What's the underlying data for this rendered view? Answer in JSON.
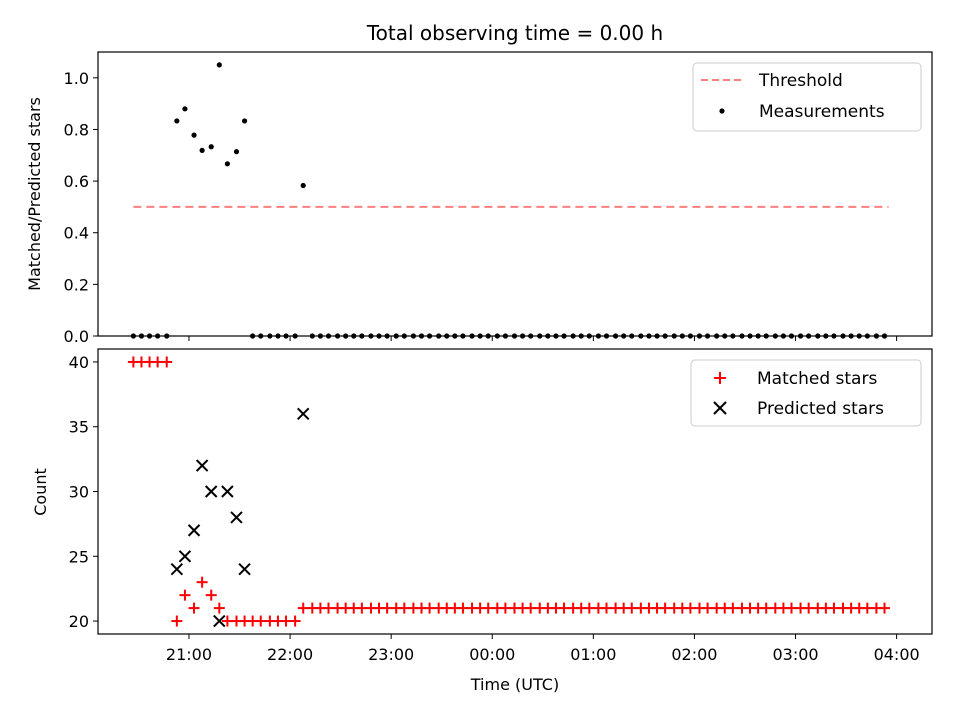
{
  "chart_data": [
    {
      "type": "scatter",
      "title": "Total observing time = 0.00 h",
      "xlabel": "",
      "ylabel": "Matched/Predicted stars",
      "xlim": [
        20.1,
        28.35
      ],
      "ylim": [
        0,
        1.1
      ],
      "yticks": [
        0.0,
        0.2,
        0.4,
        0.6,
        0.8,
        1.0
      ],
      "ytick_labels": [
        "0.0",
        "0.2",
        "0.4",
        "0.6",
        "0.8",
        "1.0"
      ],
      "xticks": [
        21,
        22,
        23,
        24,
        25,
        26,
        27,
        28
      ],
      "legend": {
        "position": "top-right",
        "entries": [
          "Threshold",
          "Measurements"
        ]
      },
      "series": [
        {
          "name": "Threshold",
          "style": "dashed-line",
          "color": "#ff7f7f",
          "x": [
            20.45,
            27.92
          ],
          "y": [
            0.5,
            0.5
          ]
        },
        {
          "name": "Measurements",
          "style": "dot",
          "color": "#000000",
          "points": [
            [
              20.45,
              0
            ],
            [
              20.53,
              0
            ],
            [
              20.61,
              0
            ],
            [
              20.69,
              0
            ],
            [
              20.78,
              0
            ],
            [
              20.88,
              0.833
            ],
            [
              20.96,
              0.88
            ],
            [
              21.05,
              0.778
            ],
            [
              21.13,
              0.719
            ],
            [
              21.22,
              0.733
            ],
            [
              21.3,
              1.05
            ],
            [
              21.38,
              0.667
            ],
            [
              21.47,
              0.714
            ],
            [
              21.55,
              0.833
            ],
            [
              21.63,
              0
            ],
            [
              21.71,
              0
            ],
            [
              21.8,
              0
            ],
            [
              21.88,
              0
            ],
            [
              21.96,
              0
            ],
            [
              22.05,
              0
            ],
            [
              22.13,
              0.583
            ],
            [
              22.22,
              0
            ],
            [
              22.3,
              0
            ],
            [
              22.38,
              0
            ],
            [
              22.47,
              0
            ],
            [
              22.55,
              0
            ],
            [
              22.63,
              0
            ],
            [
              22.71,
              0
            ],
            [
              22.8,
              0
            ],
            [
              22.88,
              0
            ],
            [
              22.96,
              0
            ],
            [
              23.05,
              0
            ],
            [
              23.13,
              0
            ],
            [
              23.22,
              0
            ],
            [
              23.3,
              0
            ],
            [
              23.38,
              0
            ],
            [
              23.47,
              0
            ],
            [
              23.55,
              0
            ],
            [
              23.63,
              0
            ],
            [
              23.71,
              0
            ],
            [
              23.8,
              0
            ],
            [
              23.88,
              0
            ],
            [
              23.96,
              0
            ],
            [
              24.05,
              0
            ],
            [
              24.13,
              0
            ],
            [
              24.22,
              0
            ],
            [
              24.3,
              0
            ],
            [
              24.38,
              0
            ],
            [
              24.47,
              0
            ],
            [
              24.55,
              0
            ],
            [
              24.63,
              0
            ],
            [
              24.71,
              0
            ],
            [
              24.8,
              0
            ],
            [
              24.88,
              0
            ],
            [
              24.96,
              0
            ],
            [
              25.05,
              0
            ],
            [
              25.13,
              0
            ],
            [
              25.22,
              0
            ],
            [
              25.3,
              0
            ],
            [
              25.38,
              0
            ],
            [
              25.47,
              0
            ],
            [
              25.55,
              0
            ],
            [
              25.63,
              0
            ],
            [
              25.71,
              0
            ],
            [
              25.8,
              0
            ],
            [
              25.88,
              0
            ],
            [
              25.96,
              0
            ],
            [
              26.05,
              0
            ],
            [
              26.13,
              0
            ],
            [
              26.22,
              0
            ],
            [
              26.3,
              0
            ],
            [
              26.38,
              0
            ],
            [
              26.47,
              0
            ],
            [
              26.55,
              0
            ],
            [
              26.63,
              0
            ],
            [
              26.71,
              0
            ],
            [
              26.8,
              0
            ],
            [
              26.88,
              0
            ],
            [
              26.96,
              0
            ],
            [
              27.05,
              0
            ],
            [
              27.13,
              0
            ],
            [
              27.22,
              0
            ],
            [
              27.3,
              0
            ],
            [
              27.38,
              0
            ],
            [
              27.47,
              0
            ],
            [
              27.55,
              0
            ],
            [
              27.63,
              0
            ],
            [
              27.71,
              0
            ],
            [
              27.8,
              0
            ],
            [
              27.88,
              0
            ]
          ]
        }
      ]
    },
    {
      "type": "scatter",
      "title": "",
      "xlabel": "Time (UTC)",
      "ylabel": "Count",
      "xlim": [
        20.1,
        28.35
      ],
      "ylim": [
        19.0,
        41.0
      ],
      "yticks": [
        20,
        25,
        30,
        35,
        40
      ],
      "ytick_labels": [
        "20",
        "25",
        "30",
        "35",
        "40"
      ],
      "xticks": [
        21,
        22,
        23,
        24,
        25,
        26,
        27,
        28
      ],
      "xtick_labels": [
        "21:00",
        "22:00",
        "23:00",
        "00:00",
        "01:00",
        "02:00",
        "03:00",
        "04:00"
      ],
      "legend": {
        "position": "top-right",
        "entries": [
          "Matched stars",
          "Predicted stars"
        ]
      },
      "series": [
        {
          "name": "Matched stars",
          "style": "plus",
          "color": "#ff0000",
          "points": [
            [
              20.45,
              40
            ],
            [
              20.53,
              40
            ],
            [
              20.61,
              40
            ],
            [
              20.69,
              40
            ],
            [
              20.78,
              40
            ],
            [
              20.88,
              20
            ],
            [
              20.96,
              22
            ],
            [
              21.05,
              21
            ],
            [
              21.13,
              23
            ],
            [
              21.22,
              22
            ],
            [
              21.3,
              21
            ],
            [
              21.38,
              20
            ],
            [
              21.47,
              20
            ],
            [
              21.55,
              20
            ],
            [
              21.63,
              20
            ],
            [
              21.71,
              20
            ],
            [
              21.8,
              20
            ],
            [
              21.88,
              20
            ],
            [
              21.96,
              20
            ],
            [
              22.05,
              20
            ],
            [
              22.13,
              21
            ],
            [
              22.22,
              21
            ],
            [
              22.3,
              21
            ],
            [
              22.38,
              21
            ],
            [
              22.47,
              21
            ],
            [
              22.55,
              21
            ],
            [
              22.63,
              21
            ],
            [
              22.71,
              21
            ],
            [
              22.8,
              21
            ],
            [
              22.88,
              21
            ],
            [
              22.96,
              21
            ],
            [
              23.05,
              21
            ],
            [
              23.13,
              21
            ],
            [
              23.22,
              21
            ],
            [
              23.3,
              21
            ],
            [
              23.38,
              21
            ],
            [
              23.47,
              21
            ],
            [
              23.55,
              21
            ],
            [
              23.63,
              21
            ],
            [
              23.71,
              21
            ],
            [
              23.8,
              21
            ],
            [
              23.88,
              21
            ],
            [
              23.96,
              21
            ],
            [
              24.05,
              21
            ],
            [
              24.13,
              21
            ],
            [
              24.22,
              21
            ],
            [
              24.3,
              21
            ],
            [
              24.38,
              21
            ],
            [
              24.47,
              21
            ],
            [
              24.55,
              21
            ],
            [
              24.63,
              21
            ],
            [
              24.71,
              21
            ],
            [
              24.8,
              21
            ],
            [
              24.88,
              21
            ],
            [
              24.96,
              21
            ],
            [
              25.05,
              21
            ],
            [
              25.13,
              21
            ],
            [
              25.22,
              21
            ],
            [
              25.3,
              21
            ],
            [
              25.38,
              21
            ],
            [
              25.47,
              21
            ],
            [
              25.55,
              21
            ],
            [
              25.63,
              21
            ],
            [
              25.71,
              21
            ],
            [
              25.8,
              21
            ],
            [
              25.88,
              21
            ],
            [
              25.96,
              21
            ],
            [
              26.05,
              21
            ],
            [
              26.13,
              21
            ],
            [
              26.22,
              21
            ],
            [
              26.3,
              21
            ],
            [
              26.38,
              21
            ],
            [
              26.47,
              21
            ],
            [
              26.55,
              21
            ],
            [
              26.63,
              21
            ],
            [
              26.71,
              21
            ],
            [
              26.8,
              21
            ],
            [
              26.88,
              21
            ],
            [
              26.96,
              21
            ],
            [
              27.05,
              21
            ],
            [
              27.13,
              21
            ],
            [
              27.22,
              21
            ],
            [
              27.3,
              21
            ],
            [
              27.38,
              21
            ],
            [
              27.47,
              21
            ],
            [
              27.55,
              21
            ],
            [
              27.63,
              21
            ],
            [
              27.71,
              21
            ],
            [
              27.8,
              21
            ],
            [
              27.88,
              21
            ]
          ]
        },
        {
          "name": "Predicted stars",
          "style": "x",
          "color": "#000000",
          "points": [
            [
              20.88,
              24
            ],
            [
              20.96,
              25
            ],
            [
              21.05,
              27
            ],
            [
              21.13,
              32
            ],
            [
              21.22,
              30
            ],
            [
              21.3,
              20
            ],
            [
              21.38,
              30
            ],
            [
              21.47,
              28
            ],
            [
              21.55,
              24
            ],
            [
              22.13,
              36
            ]
          ]
        }
      ]
    }
  ]
}
